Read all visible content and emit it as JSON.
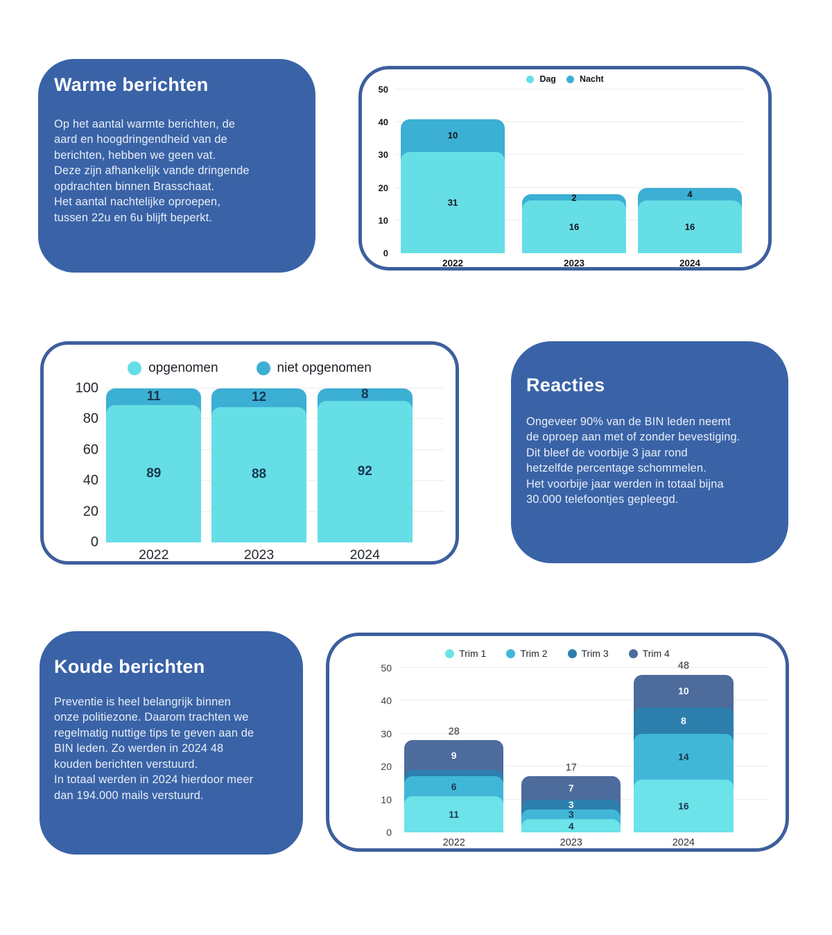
{
  "colors": {
    "page_bg": "#ffffff",
    "card_blue": "#3A63A7",
    "chart_border": "#3D5F9D",
    "grid": "#ECECEC",
    "cyan_light": "#66DEE6",
    "cyan_mid": "#3CAFD4",
    "blue_deep": "#2D7FAD",
    "slate_blue": "#4D6C9C"
  },
  "cards": {
    "warme": {
      "title": "Warme berichten",
      "body": "Op het aantal warmte berichten, de\naard en hoogdringendheid van de\nberichten, hebben we geen vat.\nDeze zijn afhankelijk vande dringende\nopdrachten binnen Brasschaat.\nHet aantal nachtelijke oproepen,\ntussen 22u en 6u blijft beperkt."
    },
    "reacties": {
      "title": "Reacties",
      "body": "Ongeveer 90% van de BIN leden neemt\nde oproep aan met of zonder bevestiging.\nDit bleef de voorbije 3 jaar rond\nhetzelfde percentage schommelen.\nHet voorbije jaar werden in totaal bijna\n30.000 telefoontjes gepleegd."
    },
    "koude": {
      "title": "Koude berichten",
      "body": "Preventie is heel belangrijk  binnen\nonze politiezone. Daarom trachten we\nregelmatig nuttige tips te geven aan de\nBIN leden. Zo werden in 2024 48\nkouden berichten verstuurd.\nIn totaal werden in 2024 hierdoor meer\ndan 194.000 mails verstuurd."
    }
  },
  "chart_data": [
    {
      "id": "dag-nacht",
      "type": "bar",
      "stacked": true,
      "categories": [
        "2022",
        "2023",
        "2024"
      ],
      "series": [
        {
          "name": "Dag",
          "color": "#66DEE6",
          "label_color": "#101418",
          "values": [
            31,
            16,
            16
          ],
          "labels": [
            "31",
            "16",
            "16"
          ]
        },
        {
          "name": "Nacht",
          "color": "#3CAFD4",
          "label_color": "#101418",
          "values": [
            10,
            2,
            4
          ],
          "labels": [
            "10",
            "2",
            "4"
          ]
        }
      ],
      "ylim": [
        0,
        50
      ],
      "yticks": [
        0,
        10,
        20,
        30,
        40,
        50
      ],
      "grid": true,
      "legend_position": "top"
    },
    {
      "id": "opgenomen-niet-opgenomen",
      "type": "bar",
      "stacked": true,
      "categories": [
        "2022",
        "2023",
        "2024"
      ],
      "series": [
        {
          "name": "opgenomen",
          "color": "#66DEE6",
          "label_color": "#17374E",
          "values": [
            89,
            88,
            92
          ],
          "labels": [
            "89",
            "88",
            "92"
          ]
        },
        {
          "name": "niet opgenomen",
          "color": "#3CAFD4",
          "label_color": "#17374E",
          "values": [
            11,
            12,
            8
          ],
          "labels": [
            "11",
            "12",
            "8"
          ]
        }
      ],
      "ylim": [
        0,
        100
      ],
      "yticks": [
        0,
        20,
        40,
        60,
        80,
        100
      ],
      "grid": true,
      "legend_position": "top"
    },
    {
      "id": "koude-trimesters",
      "type": "bar",
      "stacked": true,
      "categories": [
        "2022",
        "2023",
        "2024"
      ],
      "series": [
        {
          "name": "Trim 1",
          "color": "#6CE2E9",
          "label_color": "#1D3850",
          "values": [
            11,
            4,
            16
          ],
          "labels": [
            "11",
            "4",
            "16"
          ]
        },
        {
          "name": "Trim 2",
          "color": "#41B7D8",
          "label_color": "#1D3850",
          "values": [
            6,
            3,
            14
          ],
          "labels": [
            "6",
            "3",
            "14"
          ]
        },
        {
          "name": "Trim 3",
          "color": "#2D7FAD",
          "label_color": "#F4FAFC",
          "values": [
            2,
            3,
            8
          ],
          "labels": [
            "",
            "3",
            "8"
          ]
        },
        {
          "name": "Trim 4",
          "color": "#4D6C9C",
          "label_color": "#F4FAFC",
          "values": [
            9,
            7,
            10
          ],
          "labels": [
            "9",
            "7",
            "10"
          ]
        }
      ],
      "totals": [
        "28",
        "17",
        "48"
      ],
      "ylim": [
        0,
        50
      ],
      "yticks": [
        0,
        10,
        20,
        30,
        40,
        50
      ],
      "grid": true,
      "legend_position": "top"
    }
  ]
}
